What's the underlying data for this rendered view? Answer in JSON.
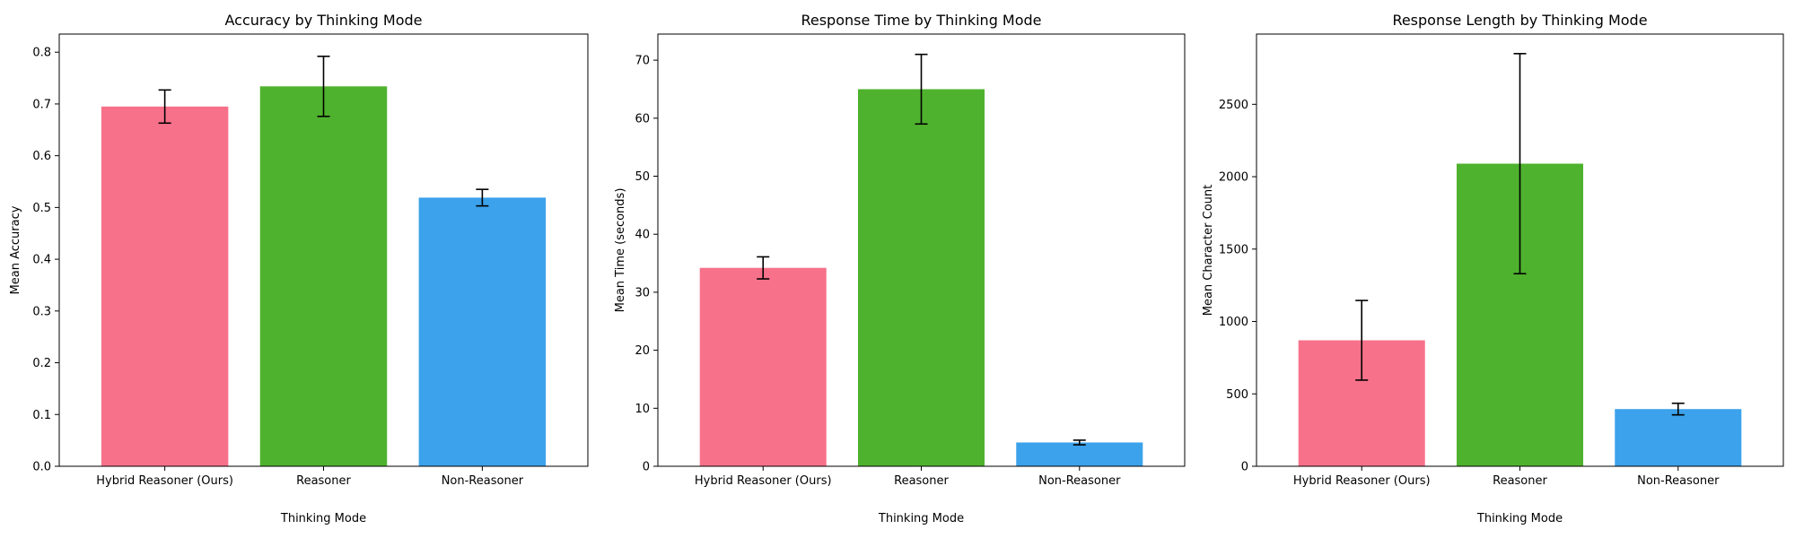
{
  "chart_data": [
    {
      "type": "bar",
      "title": "Accuracy by Thinking Mode",
      "xlabel": "Thinking Mode",
      "ylabel": "Mean Accuracy",
      "categories": [
        "Hybrid Reasoner (Ours)",
        "Reasoner",
        "Non-Reasoner"
      ],
      "values": [
        0.695,
        0.734,
        0.519
      ],
      "errors": [
        0.032,
        0.058,
        0.016
      ],
      "ylim": [
        0,
        0.835
      ],
      "yticks": [
        0.0,
        0.1,
        0.2,
        0.3,
        0.4,
        0.5,
        0.6,
        0.7,
        0.8
      ],
      "ytick_labels": [
        "0.0",
        "0.1",
        "0.2",
        "0.3",
        "0.4",
        "0.5",
        "0.6",
        "0.7",
        "0.8"
      ],
      "colors": [
        "#f7718a",
        "#4fb22e",
        "#3ba2eb"
      ],
      "grid": false
    },
    {
      "type": "bar",
      "title": "Response Time by Thinking Mode",
      "xlabel": "Thinking Mode",
      "ylabel": "Mean Time (seconds)",
      "categories": [
        "Hybrid Reasoner (Ours)",
        "Reasoner",
        "Non-Reasoner"
      ],
      "values": [
        34.2,
        65.0,
        4.1
      ],
      "errors": [
        1.9,
        6.0,
        0.4
      ],
      "ylim": [
        0,
        74.5
      ],
      "yticks": [
        0,
        10,
        20,
        30,
        40,
        50,
        60,
        70
      ],
      "ytick_labels": [
        "0",
        "10",
        "20",
        "30",
        "40",
        "50",
        "60",
        "70"
      ],
      "colors": [
        "#f7718a",
        "#4fb22e",
        "#3ba2eb"
      ],
      "grid": false
    },
    {
      "type": "bar",
      "title": "Response Length by Thinking Mode",
      "xlabel": "Thinking Mode",
      "ylabel": "Mean Character Count",
      "categories": [
        "Hybrid Reasoner (Ours)",
        "Reasoner",
        "Non-Reasoner"
      ],
      "values": [
        870,
        2090,
        395
      ],
      "errors": [
        275,
        760,
        40
      ],
      "ylim": [
        0,
        2985
      ],
      "yticks": [
        0,
        500,
        1000,
        1500,
        2000,
        2500
      ],
      "ytick_labels": [
        "0",
        "500",
        "1000",
        "1500",
        "2000",
        "2500"
      ],
      "colors": [
        "#f7718a",
        "#4fb22e",
        "#3ba2eb"
      ],
      "grid": false
    }
  ]
}
